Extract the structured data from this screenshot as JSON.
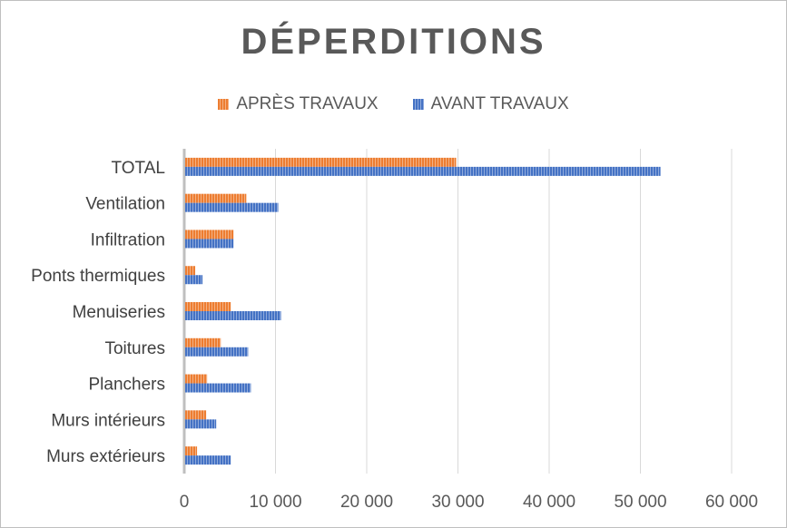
{
  "chart_data": {
    "type": "bar",
    "orientation": "horizontal",
    "title": "DÉPERDITIONS",
    "categories": [
      "Murs extérieurs",
      "Murs intérieurs",
      "Planchers",
      "Toitures",
      "Menuiseries",
      "Ponts thermiques",
      "Infiltration",
      "Ventilation",
      "TOTAL"
    ],
    "series": [
      {
        "name": "APRÈS TRAVAUX",
        "color": "#ED7D31",
        "values": [
          1400,
          2400,
          2500,
          4000,
          5100,
          1200,
          5400,
          6800,
          29800
        ]
      },
      {
        "name": "AVANT TRAVAUX",
        "color": "#4472C4",
        "values": [
          5100,
          3500,
          7300,
          7000,
          10600,
          2000,
          5400,
          10300,
          52200
        ]
      }
    ],
    "xlim": [
      0,
      60000
    ],
    "xticks": [
      0,
      10000,
      20000,
      30000,
      40000,
      50000,
      60000
    ],
    "xtick_labels": [
      "0",
      "10 000",
      "20 000",
      "30 000",
      "40 000",
      "50 000",
      "60 000"
    ],
    "grid": "vertical",
    "legend_position": "top"
  }
}
